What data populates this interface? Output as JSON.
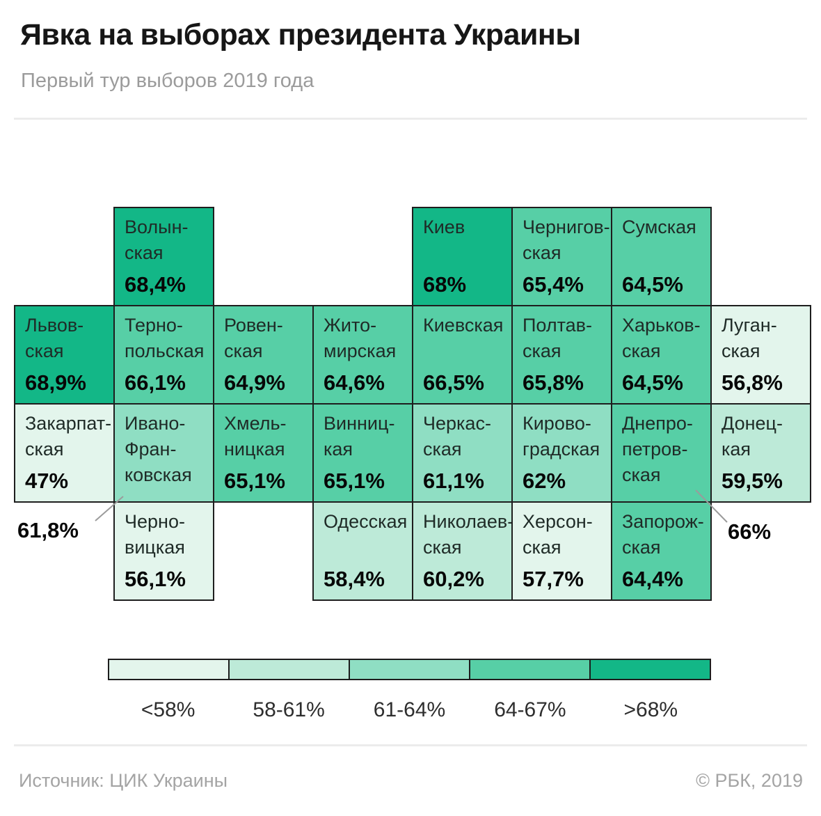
{
  "header": {
    "title": "Явка на выборах президента Украины",
    "subtitle": "Первый тур выборов 2019 года"
  },
  "footer": {
    "source": "Источник: ЦИК Украины",
    "copyright": "© РБК, 2019"
  },
  "colors": {
    "tile_border": "#1e1e1e",
    "callout_line": "#9b9b9b",
    "bucket_1": "#e3f5ec",
    "bucket_2": "#bdead8",
    "bucket_3": "#8fdec3",
    "bucket_4": "#57cfa6",
    "bucket_5": "#13b787"
  },
  "legend": {
    "items": [
      {
        "label": "<58%",
        "color": "#e3f5ec"
      },
      {
        "label": "58-61%",
        "color": "#bdead8"
      },
      {
        "label": "61-64%",
        "color": "#8fdec3"
      },
      {
        "label": "64-67%",
        "color": "#57cfa6"
      },
      {
        "label": ">68%",
        "color": "#13b787"
      }
    ]
  },
  "chart_data": {
    "type": "heatmap",
    "title": "Явка на выборах президента Украины",
    "subtitle": "Первый тур выборов 2019 года",
    "unit": "%",
    "source": "ЦИК Украины",
    "legend_buckets": [
      "<58%",
      "58-61%",
      "61-64%",
      "64-67%",
      ">68%"
    ],
    "regions": [
      {
        "name": "Волынская",
        "name_lines": [
          "Волын-",
          "ская"
        ],
        "value": "68,4%",
        "value_num": 68.4,
        "bucket": 5,
        "col": 2,
        "row": 1,
        "value_placement": "inside"
      },
      {
        "name": "Киев",
        "name_lines": [
          "Киев"
        ],
        "value": "68%",
        "value_num": 68.0,
        "bucket": 5,
        "col": 5,
        "row": 1,
        "value_placement": "inside"
      },
      {
        "name": "Черниговская",
        "name_lines": [
          "Чернигов-",
          "ская"
        ],
        "value": "65,4%",
        "value_num": 65.4,
        "bucket": 4,
        "col": 6,
        "row": 1,
        "value_placement": "inside"
      },
      {
        "name": "Сумская",
        "name_lines": [
          "Сумская"
        ],
        "value": "64,5%",
        "value_num": 64.5,
        "bucket": 4,
        "col": 7,
        "row": 1,
        "value_placement": "inside"
      },
      {
        "name": "Львовская",
        "name_lines": [
          "Львов-",
          "ская"
        ],
        "value": "68,9%",
        "value_num": 68.9,
        "bucket": 5,
        "col": 1,
        "row": 2,
        "value_placement": "inside"
      },
      {
        "name": "Тернопольская",
        "name_lines": [
          "Терно-",
          "польская"
        ],
        "value": "66,1%",
        "value_num": 66.1,
        "bucket": 4,
        "col": 2,
        "row": 2,
        "value_placement": "inside"
      },
      {
        "name": "Ровенская",
        "name_lines": [
          "Ровен-",
          "ская"
        ],
        "value": "64,9%",
        "value_num": 64.9,
        "bucket": 4,
        "col": 3,
        "row": 2,
        "value_placement": "inside"
      },
      {
        "name": "Житомирская",
        "name_lines": [
          "Жито-",
          "мирская"
        ],
        "value": "64,6%",
        "value_num": 64.6,
        "bucket": 4,
        "col": 4,
        "row": 2,
        "value_placement": "inside"
      },
      {
        "name": "Киевская",
        "name_lines": [
          "Киевская"
        ],
        "value": "66,5%",
        "value_num": 66.5,
        "bucket": 4,
        "col": 5,
        "row": 2,
        "value_placement": "inside"
      },
      {
        "name": "Полтавская",
        "name_lines": [
          "Полтав-",
          "ская"
        ],
        "value": "65,8%",
        "value_num": 65.8,
        "bucket": 4,
        "col": 6,
        "row": 2,
        "value_placement": "inside"
      },
      {
        "name": "Харьковская",
        "name_lines": [
          "Харьков-",
          "ская"
        ],
        "value": "64,5%",
        "value_num": 64.5,
        "bucket": 4,
        "col": 7,
        "row": 2,
        "value_placement": "inside"
      },
      {
        "name": "Луганская",
        "name_lines": [
          "Луган-",
          "ская"
        ],
        "value": "56,8%",
        "value_num": 56.8,
        "bucket": 1,
        "col": 8,
        "row": 2,
        "value_placement": "inside"
      },
      {
        "name": "Закарпатская",
        "name_lines": [
          "Закарпат-",
          "ская"
        ],
        "value": "47%",
        "value_num": 47.0,
        "bucket": 1,
        "col": 1,
        "row": 3,
        "value_placement": "inside"
      },
      {
        "name": "Ивано-Франковская",
        "name_lines": [
          "Ивано-",
          "Фран-",
          "ковская"
        ],
        "value": "61,8%",
        "value_num": 61.8,
        "bucket": 3,
        "col": 2,
        "row": 3,
        "value_placement": "callout-left"
      },
      {
        "name": "Хмельницкая",
        "name_lines": [
          "Хмель-",
          "ницкая"
        ],
        "value": "65,1%",
        "value_num": 65.1,
        "bucket": 4,
        "col": 3,
        "row": 3,
        "value_placement": "inside"
      },
      {
        "name": "Винницкая",
        "name_lines": [
          "Винниц-",
          "кая"
        ],
        "value": "65,1%",
        "value_num": 65.1,
        "bucket": 4,
        "col": 4,
        "row": 3,
        "value_placement": "inside"
      },
      {
        "name": "Черкасская",
        "name_lines": [
          "Черкас-",
          "ская"
        ],
        "value": "61,1%",
        "value_num": 61.1,
        "bucket": 3,
        "col": 5,
        "row": 3,
        "value_placement": "inside"
      },
      {
        "name": "Кировоградская",
        "name_lines": [
          "Кирово-",
          "градская"
        ],
        "value": "62%",
        "value_num": 62.0,
        "bucket": 3,
        "col": 6,
        "row": 3,
        "value_placement": "inside"
      },
      {
        "name": "Днепропетровская",
        "name_lines": [
          "Днепро-",
          "петров-",
          "ская"
        ],
        "value": "66%",
        "value_num": 66.0,
        "bucket": 4,
        "col": 7,
        "row": 3,
        "value_placement": "callout-right"
      },
      {
        "name": "Донецкая",
        "name_lines": [
          "Донец-",
          "кая"
        ],
        "value": "59,5%",
        "value_num": 59.5,
        "bucket": 2,
        "col": 8,
        "row": 3,
        "value_placement": "inside"
      },
      {
        "name": "Черновицкая",
        "name_lines": [
          "Черно-",
          "вицкая"
        ],
        "value": "56,1%",
        "value_num": 56.1,
        "bucket": 1,
        "col": 2,
        "row": 4,
        "value_placement": "inside"
      },
      {
        "name": "Одесская",
        "name_lines": [
          "Одесская"
        ],
        "value": "58,4%",
        "value_num": 58.4,
        "bucket": 2,
        "col": 4,
        "row": 4,
        "value_placement": "inside"
      },
      {
        "name": "Николаевская",
        "name_lines": [
          "Николаев-",
          "ская"
        ],
        "value": "60,2%",
        "value_num": 60.2,
        "bucket": 2,
        "col": 5,
        "row": 4,
        "value_placement": "inside"
      },
      {
        "name": "Херсонская",
        "name_lines": [
          "Херсон-",
          "ская"
        ],
        "value": "57,7%",
        "value_num": 57.7,
        "bucket": 1,
        "col": 6,
        "row": 4,
        "value_placement": "inside"
      },
      {
        "name": "Запорожская",
        "name_lines": [
          "Запорож-",
          "ская"
        ],
        "value": "64,4%",
        "value_num": 64.4,
        "bucket": 4,
        "col": 7,
        "row": 4,
        "value_placement": "inside"
      }
    ]
  }
}
